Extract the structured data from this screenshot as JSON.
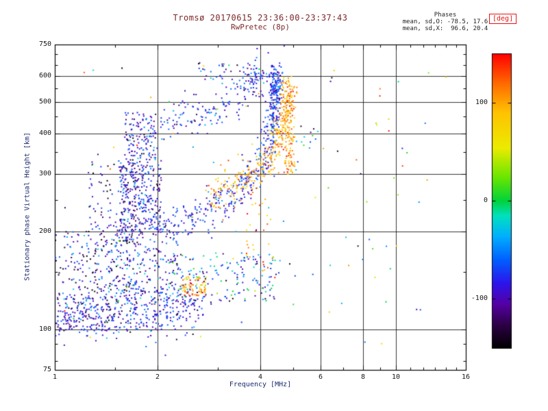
{
  "figure": {
    "title": "Tromsø 20170615 23:36:00-23:37:43",
    "subtitle": "RwPretec (8p)",
    "stats": {
      "heading": "Phases",
      "line_o": "mean, sd,O: -78.5, 17.6",
      "line_x": "mean, sd,X:  96.6, 20.4"
    },
    "colors": {
      "title_text": "#7b2828",
      "axis_label_text": "#1c2a6e",
      "tick_text": "#141414",
      "deg_label": "#e81010",
      "frame": "#000000"
    }
  },
  "chart_data": {
    "type": "scatter",
    "title": "Tromsø 20170615 23:36:00-23:37:43",
    "subtitle": "RwPretec (8p)",
    "xlabel": "Frequency [MHz]",
    "ylabel": "Stationary phase Virtual Height [km]",
    "x": {
      "label": "Frequency [MHz]",
      "scale": "log",
      "min": 1,
      "max": 16,
      "major_ticks": [
        1,
        2,
        4,
        6,
        8,
        10,
        16
      ],
      "minor_ticks": [
        1.5,
        3,
        5,
        7,
        9,
        11,
        12,
        13,
        14,
        15
      ]
    },
    "y": {
      "label": "Stationary phase Virtual Height [km]",
      "scale": "log",
      "min": 75,
      "max": 750,
      "major_ticks": [
        75,
        100,
        200,
        300,
        400,
        500,
        600,
        750
      ],
      "minor_ticks": [
        80,
        90,
        150,
        250,
        350,
        450,
        550,
        650,
        700
      ]
    },
    "grid": {
      "on": true,
      "x_lines": [
        2,
        4,
        6,
        8,
        10
      ],
      "y_lines": [
        100,
        200,
        300,
        400,
        500,
        600
      ]
    },
    "legend": "colorbar-right",
    "colorbar": {
      "label": "[deg]",
      "ticks": [
        100,
        0,
        -100
      ],
      "min": -150,
      "max": 150,
      "stops": [
        [
          0.0,
          0,
          0,
          0
        ],
        [
          0.08,
          45,
          0,
          70
        ],
        [
          0.15,
          85,
          0,
          165
        ],
        [
          0.22,
          45,
          20,
          235
        ],
        [
          0.3,
          0,
          95,
          255
        ],
        [
          0.38,
          0,
          175,
          255
        ],
        [
          0.45,
          0,
          225,
          190
        ],
        [
          0.5,
          0,
          210,
          60
        ],
        [
          0.58,
          105,
          230,
          0
        ],
        [
          0.68,
          235,
          235,
          0
        ],
        [
          0.8,
          255,
          195,
          0
        ],
        [
          0.9,
          255,
          105,
          0
        ],
        [
          1.0,
          255,
          0,
          0
        ]
      ]
    },
    "series_stats": {
      "o_mean_deg": -78.5,
      "o_sd_deg": 17.6,
      "x_mean_deg": 96.6,
      "x_sd_deg": 20.4
    },
    "seed": 42,
    "clusters": [
      {
        "name": "left-noise",
        "kind": "cloud",
        "f": [
          1.0,
          1.75
        ],
        "h": [
          98,
          200
        ],
        "n": 320,
        "phase": {
          "mean": -95,
          "sd": 35
        }
      },
      {
        "name": "left-mid-cloud",
        "kind": "cloud",
        "f": [
          1.5,
          2.3
        ],
        "h": [
          120,
          210
        ],
        "n": 220,
        "phase": {
          "mean": -85,
          "sd": 30
        }
      },
      {
        "name": "diag-left",
        "kind": "cloud",
        "f": [
          1.25,
          1.8
        ],
        "h": [
          200,
          330
        ],
        "n": 90,
        "phase": {
          "mean": -95,
          "sd": 30
        }
      },
      {
        "name": "spread-column-low",
        "kind": "cloud",
        "f": [
          1.55,
          2.05
        ],
        "h": [
          195,
          330
        ],
        "n": 300,
        "phase": {
          "mean": -90,
          "sd": 28
        }
      },
      {
        "name": "spread-column-high",
        "kind": "cloud",
        "f": [
          1.6,
          1.98
        ],
        "h": [
          330,
          465
        ],
        "n": 130,
        "phase": {
          "mean": -88,
          "sd": 28
        }
      },
      {
        "name": "e-region-band",
        "kind": "trace",
        "pts": [
          [
            1.0,
            113
          ],
          [
            1.3,
            110
          ],
          [
            1.6,
            112
          ],
          [
            1.9,
            109
          ],
          [
            2.2,
            112
          ],
          [
            2.5,
            118
          ],
          [
            2.75,
            126
          ]
        ],
        "n": 380,
        "fj": 0.015,
        "hj": 0.035,
        "phase": {
          "mean": -85,
          "sd": 22
        }
      },
      {
        "name": "mid-band-scatter",
        "kind": "cloud",
        "f": [
          2.2,
          4.6
        ],
        "h": [
          122,
          172
        ],
        "n": 170,
        "phase": {
          "mean": -60,
          "sd": 45
        }
      },
      {
        "name": "f-trace-o-mode",
        "kind": "trace",
        "pts": [
          [
            2.0,
            208
          ],
          [
            2.4,
            218
          ],
          [
            2.8,
            232
          ],
          [
            3.2,
            252
          ],
          [
            3.6,
            278
          ],
          [
            3.9,
            305
          ],
          [
            4.15,
            345
          ],
          [
            4.3,
            400
          ],
          [
            4.38,
            470
          ],
          [
            4.42,
            560
          ],
          [
            4.45,
            630
          ]
        ],
        "n": 420,
        "fj": 0.012,
        "hj": 0.03,
        "phase": {
          "mean": -78,
          "sd": 17
        }
      },
      {
        "name": "o-asymptote-extra",
        "kind": "cloud",
        "f": [
          4.3,
          4.58
        ],
        "h": [
          420,
          645
        ],
        "n": 80,
        "phase": {
          "mean": -75,
          "sd": 20
        }
      },
      {
        "name": "upper-second-trace",
        "kind": "trace",
        "pts": [
          [
            2.05,
            420
          ],
          [
            2.5,
            442
          ],
          [
            3.0,
            468
          ],
          [
            3.4,
            505
          ],
          [
            3.7,
            555
          ],
          [
            3.9,
            612
          ],
          [
            3.98,
            650
          ]
        ],
        "n": 170,
        "fj": 0.016,
        "hj": 0.035,
        "phase": {
          "mean": -80,
          "sd": 22
        }
      },
      {
        "name": "top-scatter",
        "kind": "cloud",
        "f": [
          2.6,
          4.4
        ],
        "h": [
          555,
          655
        ],
        "n": 55,
        "phase": {
          "mean": -75,
          "sd": 35
        }
      },
      {
        "name": "yellow-cluster-low",
        "kind": "cloud",
        "f": [
          2.35,
          2.78
        ],
        "h": [
          127,
          146
        ],
        "n": 70,
        "phase": {
          "mean": 105,
          "sd": 25
        }
      },
      {
        "name": "x-mode-trace",
        "kind": "trace",
        "pts": [
          [
            2.85,
            255
          ],
          [
            3.2,
            268
          ],
          [
            3.6,
            288
          ],
          [
            4.0,
            312
          ],
          [
            4.3,
            340
          ],
          [
            4.55,
            380
          ],
          [
            4.7,
            440
          ],
          [
            4.8,
            520
          ],
          [
            4.85,
            565
          ]
        ],
        "n": 330,
        "fj": 0.012,
        "hj": 0.03,
        "phase": {
          "mean": 97,
          "sd": 20
        }
      },
      {
        "name": "x-asymptote-extra",
        "kind": "cloud",
        "f": [
          4.72,
          5.05
        ],
        "h": [
          300,
          560
        ],
        "n": 110,
        "phase": {
          "mean": 100,
          "sd": 25
        }
      },
      {
        "name": "yellow-dots-mid",
        "kind": "cloud",
        "f": [
          3.6,
          4.35
        ],
        "h": [
          150,
          260
        ],
        "n": 30,
        "phase": {
          "mean": 100,
          "sd": 40
        }
      },
      {
        "name": "mid-right-dots",
        "kind": "cloud",
        "f": [
          5.1,
          5.9
        ],
        "h": [
          360,
          430
        ],
        "n": 12,
        "phase": {
          "mean": -60,
          "sd": 60
        }
      },
      {
        "name": "sprinkle",
        "kind": "cloud",
        "f": [
          1.05,
          14.5
        ],
        "h": [
          88,
          660
        ],
        "n": 85,
        "phase": {
          "uniform": true
        }
      },
      {
        "name": "right-sparse",
        "kind": "cloud",
        "f": [
          6.2,
          13.0
        ],
        "h": [
          110,
          600
        ],
        "n": 14,
        "phase": {
          "uniform": true
        }
      }
    ]
  }
}
